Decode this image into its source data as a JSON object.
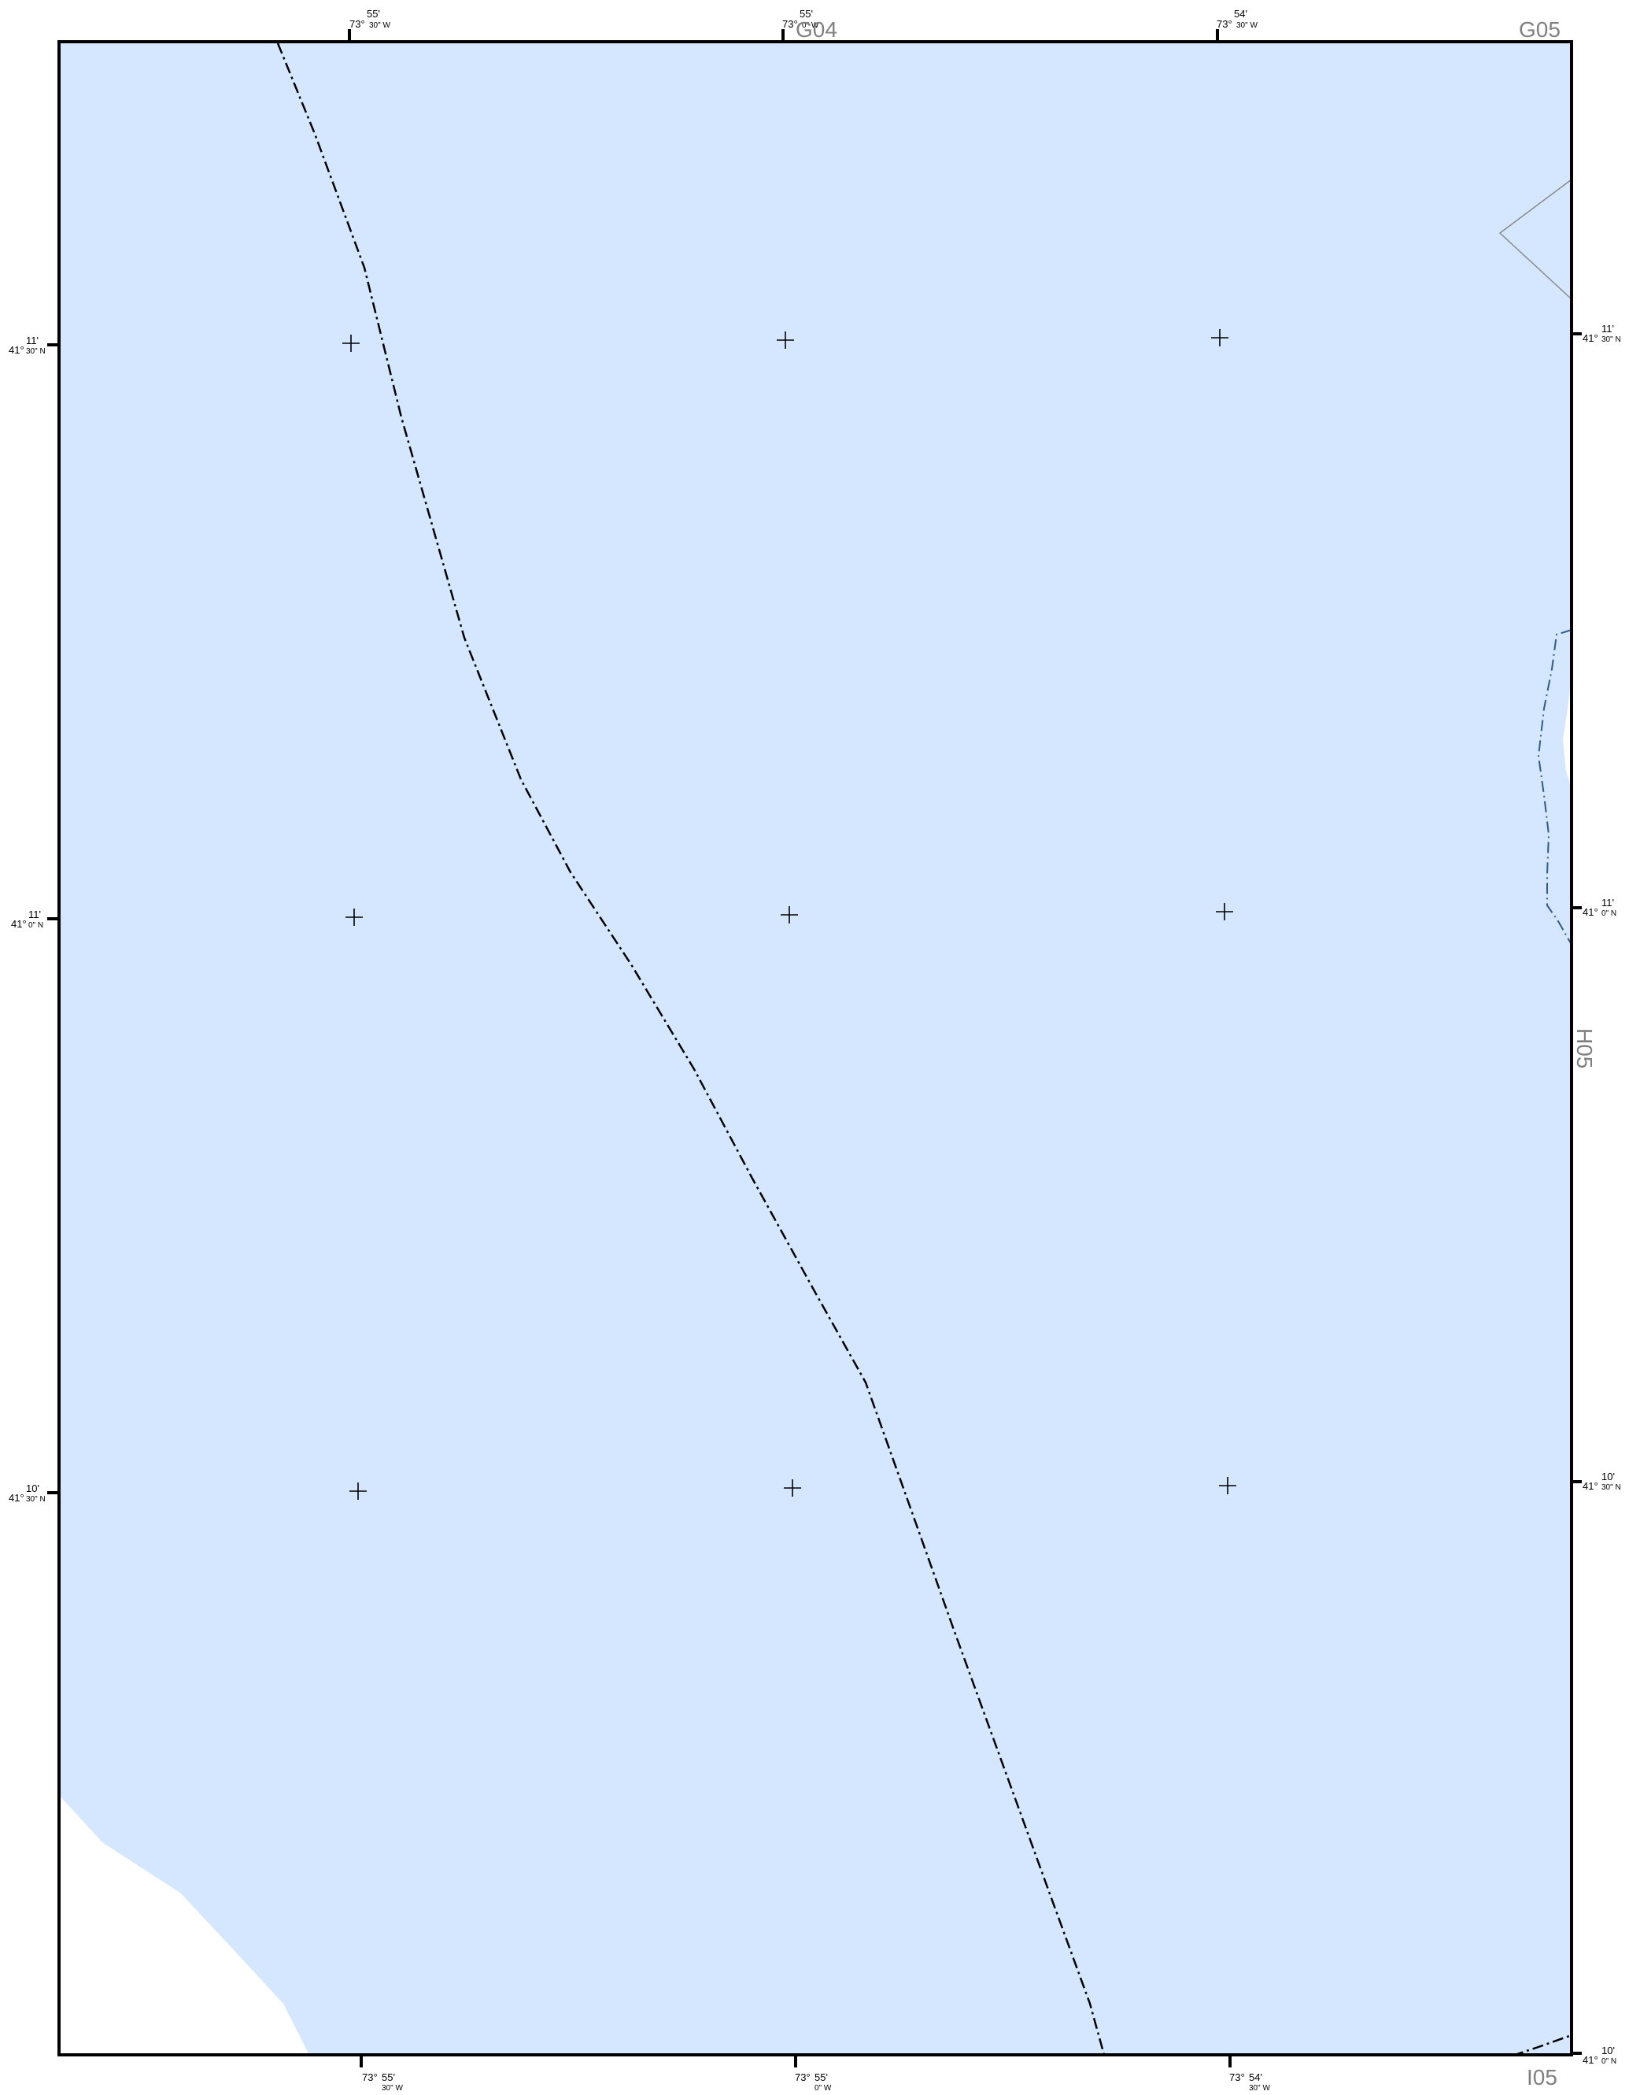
{
  "map": {
    "colors": {
      "water": "#d4e7fe",
      "land": "#ffffff",
      "frame": "#000000",
      "boundary": "#000000",
      "shoreline_dash": "#2f5a8a",
      "adjacent_sheet_label": "#808080"
    },
    "adjacent_sheets": {
      "top_center": "G04",
      "top_right": "G05",
      "right": "H05",
      "bottom_right": "I05"
    },
    "top_ticks": [
      {
        "deg": "73°",
        "min": "55'",
        "sec": "30\" W"
      },
      {
        "deg": "73°",
        "min": "55'",
        "sec": "0\" W"
      },
      {
        "deg": "73°",
        "min": "54'",
        "sec": "30\" W"
      }
    ],
    "bottom_ticks": [
      {
        "deg": "73°",
        "min": "55'",
        "sec": "30\" W"
      },
      {
        "deg": "73°",
        "min": "55'",
        "sec": "0\" W"
      },
      {
        "deg": "73°",
        "min": "54'",
        "sec": "30\" W"
      }
    ],
    "left_ticks": [
      {
        "deg": "41°",
        "min": "11'",
        "sec": "30\" N"
      },
      {
        "deg": "41°",
        "min": "11'",
        "sec": "0\" N"
      },
      {
        "deg": "41°",
        "min": "10'",
        "sec": "30\" N"
      }
    ],
    "right_ticks": [
      {
        "deg": "41°",
        "min": "11'",
        "sec": "30\" N"
      },
      {
        "deg": "41°",
        "min": "11'",
        "sec": "0\" N"
      },
      {
        "deg": "41°",
        "min": "10'",
        "sec": "30\" N"
      },
      {
        "deg": "41°",
        "min": "10'",
        "sec": "0\" N"
      }
    ],
    "graticule_crosses": 9
  }
}
